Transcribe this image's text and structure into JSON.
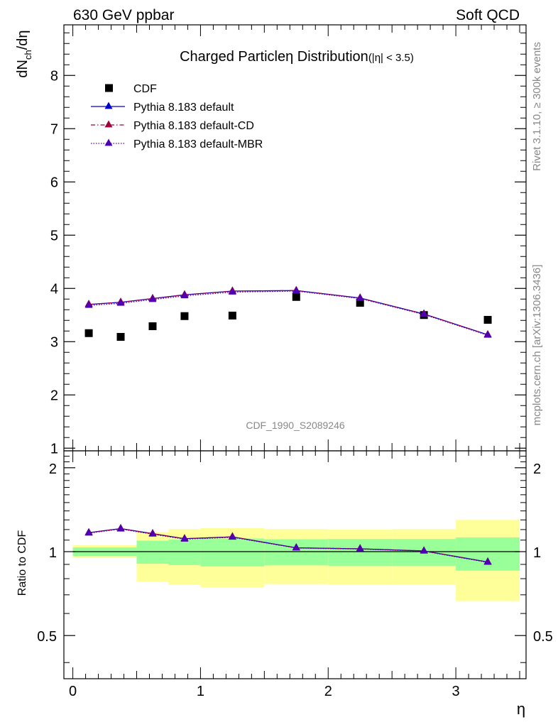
{
  "header": {
    "left": "630 GeV ppbar",
    "right": "Soft QCD"
  },
  "side_text": {
    "rivet": "Rivet 3.1.10, ≥ 300k events",
    "mcplots": "mcplots.cern.ch [arXiv:1306.3436]"
  },
  "chart_data": [
    {
      "panel": "main",
      "type": "scatter",
      "title": "Charged Particle",
      "title_symbol": "η",
      "title_main": " Distribution",
      "title_cut": "(|η| < 3.5)",
      "ylabel_main": "dN",
      "ylabel_sub": "ch",
      "ylabel_tail": "/dη",
      "watermark": "CDF_1990_S2089246",
      "xlim": [
        -0.07,
        3.55
      ],
      "ylim": [
        0.95,
        8.95
      ],
      "yticks": [
        1,
        2,
        3,
        4,
        5,
        6,
        7,
        8
      ],
      "ytick_labels": [
        "1",
        "2",
        "3",
        "4",
        "5",
        "6",
        "7",
        "8"
      ],
      "legend_position": "top-left",
      "series": [
        {
          "name": "CDF",
          "style": "marker",
          "color": "#000000",
          "x": [
            0.125,
            0.375,
            0.625,
            0.875,
            1.25,
            1.75,
            2.25,
            2.75,
            3.25
          ],
          "y": [
            3.16,
            3.09,
            3.29,
            3.48,
            3.49,
            3.84,
            3.73,
            3.5,
            3.41
          ]
        },
        {
          "name": "Pythia 8.183 default",
          "style": "solid",
          "color": "#0000cc",
          "x": [
            0.125,
            0.375,
            0.625,
            0.875,
            1.25,
            1.75,
            2.25,
            2.75,
            3.25
          ],
          "y": [
            3.7,
            3.74,
            3.81,
            3.88,
            3.95,
            3.96,
            3.82,
            3.52,
            3.13
          ]
        },
        {
          "name": "Pythia 8.183 default-CD",
          "style": "dashdot",
          "color": "#a0003c",
          "x": [
            0.125,
            0.375,
            0.625,
            0.875,
            1.25,
            1.75,
            2.25,
            2.75,
            3.25
          ],
          "y": [
            3.7,
            3.74,
            3.81,
            3.88,
            3.95,
            3.96,
            3.82,
            3.52,
            3.13
          ]
        },
        {
          "name": "Pythia 8.183 default-MBR",
          "style": "dotted",
          "color": "#5000b4",
          "x": [
            0.125,
            0.375,
            0.625,
            0.875,
            1.25,
            1.75,
            2.25,
            2.75,
            3.25
          ],
          "y": [
            3.68,
            3.72,
            3.79,
            3.86,
            3.93,
            3.95,
            3.81,
            3.51,
            3.12
          ]
        }
      ]
    },
    {
      "panel": "ratio",
      "type": "line",
      "ylabel": "Ratio to CDF",
      "xlabel": "η",
      "xlim": [
        -0.07,
        3.55
      ],
      "ylim": [
        0.35,
        2.3
      ],
      "yticks": [
        0.5,
        1,
        2
      ],
      "ytick_labels": [
        "0.5",
        "1",
        "2"
      ],
      "xticks": [
        0,
        1,
        2,
        3
      ],
      "xtick_labels": [
        "0",
        "1",
        "2",
        "3"
      ],
      "bands": {
        "edges": [
          0,
          0.5,
          0.75,
          1.0,
          1.5,
          2.0,
          2.5,
          3.0,
          3.5
        ],
        "outer_color": "#ffff99",
        "inner_color": "#99ff99",
        "outer_lo": [
          0.95,
          0.78,
          0.76,
          0.745,
          0.765,
          0.76,
          0.76,
          0.665
        ],
        "outer_hi": [
          1.055,
          1.175,
          1.205,
          1.215,
          1.205,
          1.2,
          1.205,
          1.3
        ],
        "inner_lo": [
          0.965,
          0.905,
          0.895,
          0.885,
          0.893,
          0.89,
          0.89,
          0.855
        ],
        "inner_hi": [
          1.035,
          1.095,
          1.105,
          1.115,
          1.108,
          1.11,
          1.11,
          1.125
        ]
      },
      "series": [
        {
          "name": "Pythia 8.183 default / CDF",
          "color": "#0000cc",
          "x": [
            0.125,
            0.375,
            0.625,
            0.875,
            1.25,
            1.75,
            2.25,
            2.75,
            3.25
          ],
          "y": [
            1.17,
            1.21,
            1.16,
            1.113,
            1.13,
            1.032,
            1.024,
            1.006,
            0.918
          ]
        },
        {
          "name": "Pythia 8.183 default-CD / CDF",
          "color": "#a0003c",
          "x": [
            0.125,
            0.375,
            0.625,
            0.875,
            1.25,
            1.75,
            2.25,
            2.75,
            3.25
          ],
          "y": [
            1.17,
            1.21,
            1.16,
            1.113,
            1.13,
            1.032,
            1.024,
            1.006,
            0.918
          ]
        },
        {
          "name": "Pythia 8.183 default-MBR / CDF",
          "color": "#5000b4",
          "x": [
            0.125,
            0.375,
            0.625,
            0.875,
            1.25,
            1.75,
            2.25,
            2.75,
            3.25
          ],
          "y": [
            1.165,
            1.205,
            1.155,
            1.108,
            1.126,
            1.03,
            1.022,
            1.004,
            0.915
          ]
        }
      ]
    }
  ]
}
